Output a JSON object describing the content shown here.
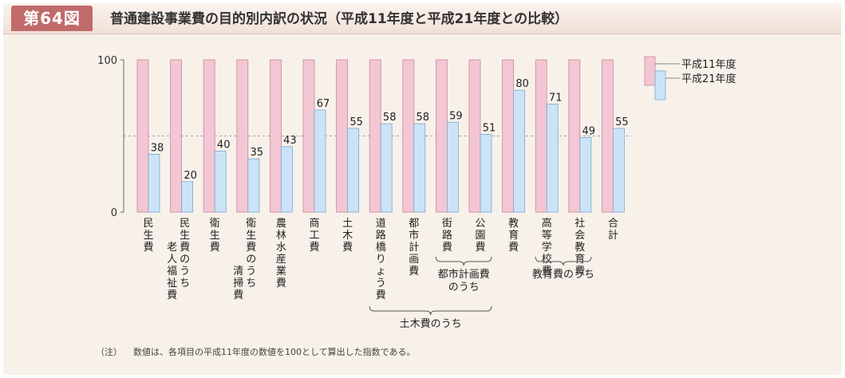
{
  "header": {
    "figure_label": "第64図",
    "title": "普通建設事業費の目的別内訳の状況（平成11年度と平成21年度との比較）"
  },
  "note": {
    "prefix": "（注）",
    "text": "数値は、各項目の平成11年度の数値を100として算出した指数である。"
  },
  "colors": {
    "series1_fill": "#f3c6d3",
    "series1_stroke": "#c9889c",
    "series2_fill": "#cce3f7",
    "series2_stroke": "#7aa8cf"
  },
  "chart_data": {
    "type": "bar",
    "ylim": [
      0,
      100
    ],
    "y_ticks": [
      "0",
      "100"
    ],
    "reference_line": 50,
    "legend_position": "top-right",
    "categories": [
      [
        "民生費"
      ],
      [
        "民生費のうち",
        "老人福祉費"
      ],
      [
        "衛生費"
      ],
      [
        "衛生費のうち",
        "清掃費"
      ],
      [
        "農林水産業費"
      ],
      [
        "商工費"
      ],
      [
        "土木費"
      ],
      [
        "道路橋りょう費"
      ],
      [
        "都市計画費"
      ],
      [
        "街路費"
      ],
      [
        "公園費"
      ],
      [
        "教育費"
      ],
      [
        "高等学校費"
      ],
      [
        "社会教育費"
      ],
      [
        "合計"
      ]
    ],
    "series": [
      {
        "name": "平成11年度",
        "values": [
          100,
          100,
          100,
          100,
          100,
          100,
          100,
          100,
          100,
          100,
          100,
          100,
          100,
          100,
          100
        ]
      },
      {
        "name": "平成21年度",
        "values": [
          38,
          20,
          40,
          35,
          43,
          67,
          55,
          58,
          58,
          59,
          51,
          80,
          71,
          49,
          55
        ]
      }
    ],
    "groups": [
      {
        "label": "都市計画費",
        "label2": "のうち",
        "from": 9,
        "to": 10
      },
      {
        "label": "教育費のうち",
        "label2": "",
        "from": 12,
        "to": 13
      },
      {
        "label": "土木費のうち",
        "label2": "",
        "from": 7,
        "to": 10
      }
    ]
  }
}
